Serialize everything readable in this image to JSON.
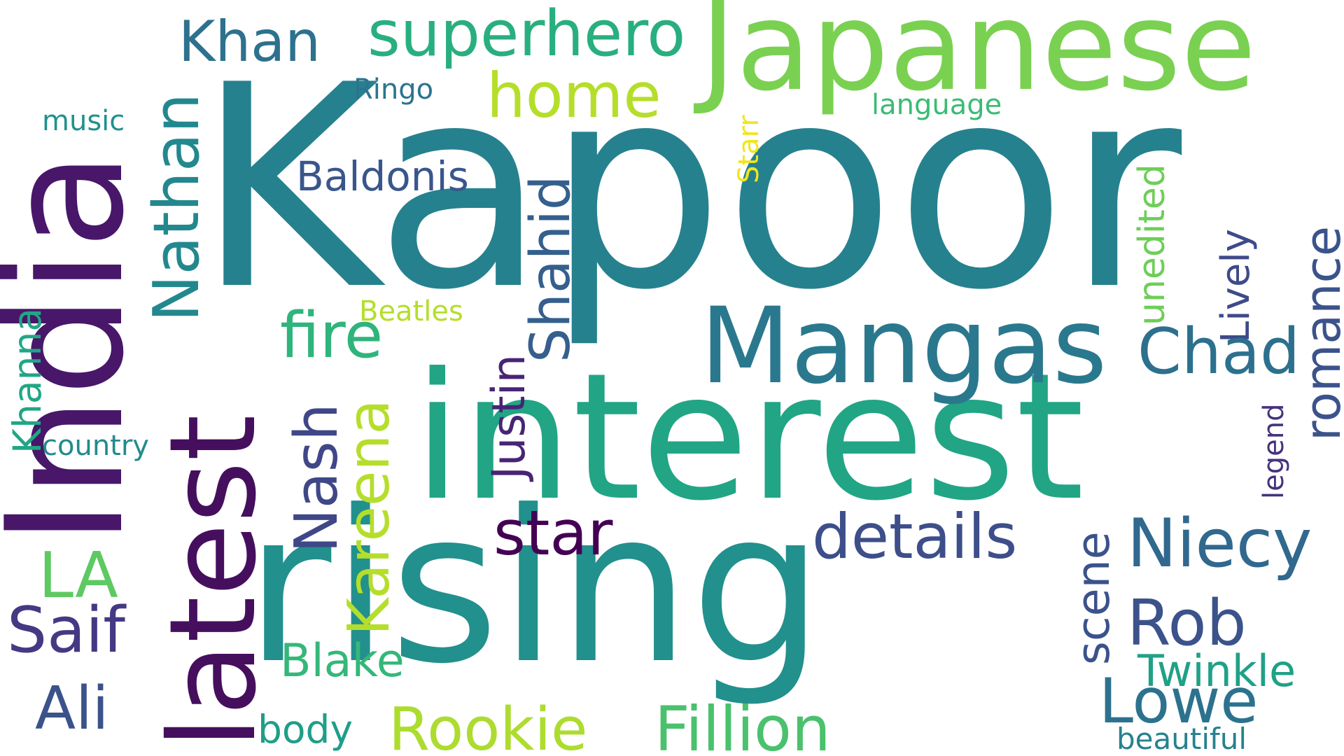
{
  "words": [
    {
      "text": "Kapoor",
      "color": "#26818e"
    },
    {
      "text": "interest",
      "color": "#21a585"
    },
    {
      "text": "rising",
      "color": "#22908d"
    },
    {
      "text": "Japanese",
      "color": "#7ad151"
    },
    {
      "text": "Mangas",
      "color": "#2a788e"
    },
    {
      "text": "India",
      "color": "#481769"
    },
    {
      "text": "latest",
      "color": "#460f5e"
    },
    {
      "text": "superhero",
      "color": "#29af7f"
    },
    {
      "text": "Khan",
      "color": "#2d718e"
    },
    {
      "text": "home",
      "color": "#b5de2b"
    },
    {
      "text": "Nathan",
      "color": "#23888e"
    },
    {
      "text": "Baldonis",
      "color": "#39568c"
    },
    {
      "text": "Ringo",
      "color": "#2b748e"
    },
    {
      "text": "music",
      "color": "#21918c"
    },
    {
      "text": "language",
      "color": "#3bbb75"
    },
    {
      "text": "Starr",
      "color": "#f1e51d"
    },
    {
      "text": "unedited",
      "color": "#6ece58"
    },
    {
      "text": "Lively",
      "color": "#3e4a89"
    },
    {
      "text": "romance",
      "color": "#3b528b"
    },
    {
      "text": "Shahid",
      "color": "#355f8d"
    },
    {
      "text": "fire",
      "color": "#2fb47c"
    },
    {
      "text": "Beatles",
      "color": "#b5de2b"
    },
    {
      "text": "Justin",
      "color": "#482475"
    },
    {
      "text": "Chad",
      "color": "#2d708e"
    },
    {
      "text": "Khanna",
      "color": "#21a685"
    },
    {
      "text": "country",
      "color": "#238a8d"
    },
    {
      "text": "Nash",
      "color": "#3f4788"
    },
    {
      "text": "Kareena",
      "color": "#b5de2b"
    },
    {
      "text": "legend",
      "color": "#46327e"
    },
    {
      "text": "star",
      "color": "#440154"
    },
    {
      "text": "details",
      "color": "#3d4e8a"
    },
    {
      "text": "Niecy",
      "color": "#31688e"
    },
    {
      "text": "LA",
      "color": "#5ec962"
    },
    {
      "text": "scene",
      "color": "#3b528b"
    },
    {
      "text": "Saif",
      "color": "#443983"
    },
    {
      "text": "Rob",
      "color": "#3b528b"
    },
    {
      "text": "Blake",
      "color": "#35b779"
    },
    {
      "text": "Twinkle",
      "color": "#1fa187"
    },
    {
      "text": "Ali",
      "color": "#3b528b"
    },
    {
      "text": "Lowe",
      "color": "#2c728e"
    },
    {
      "text": "body",
      "color": "#1f9e89"
    },
    {
      "text": "Rookie",
      "color": "#addc30"
    },
    {
      "text": "Fillion",
      "color": "#4ac16d"
    },
    {
      "text": "beautiful",
      "color": "#26828e"
    }
  ]
}
